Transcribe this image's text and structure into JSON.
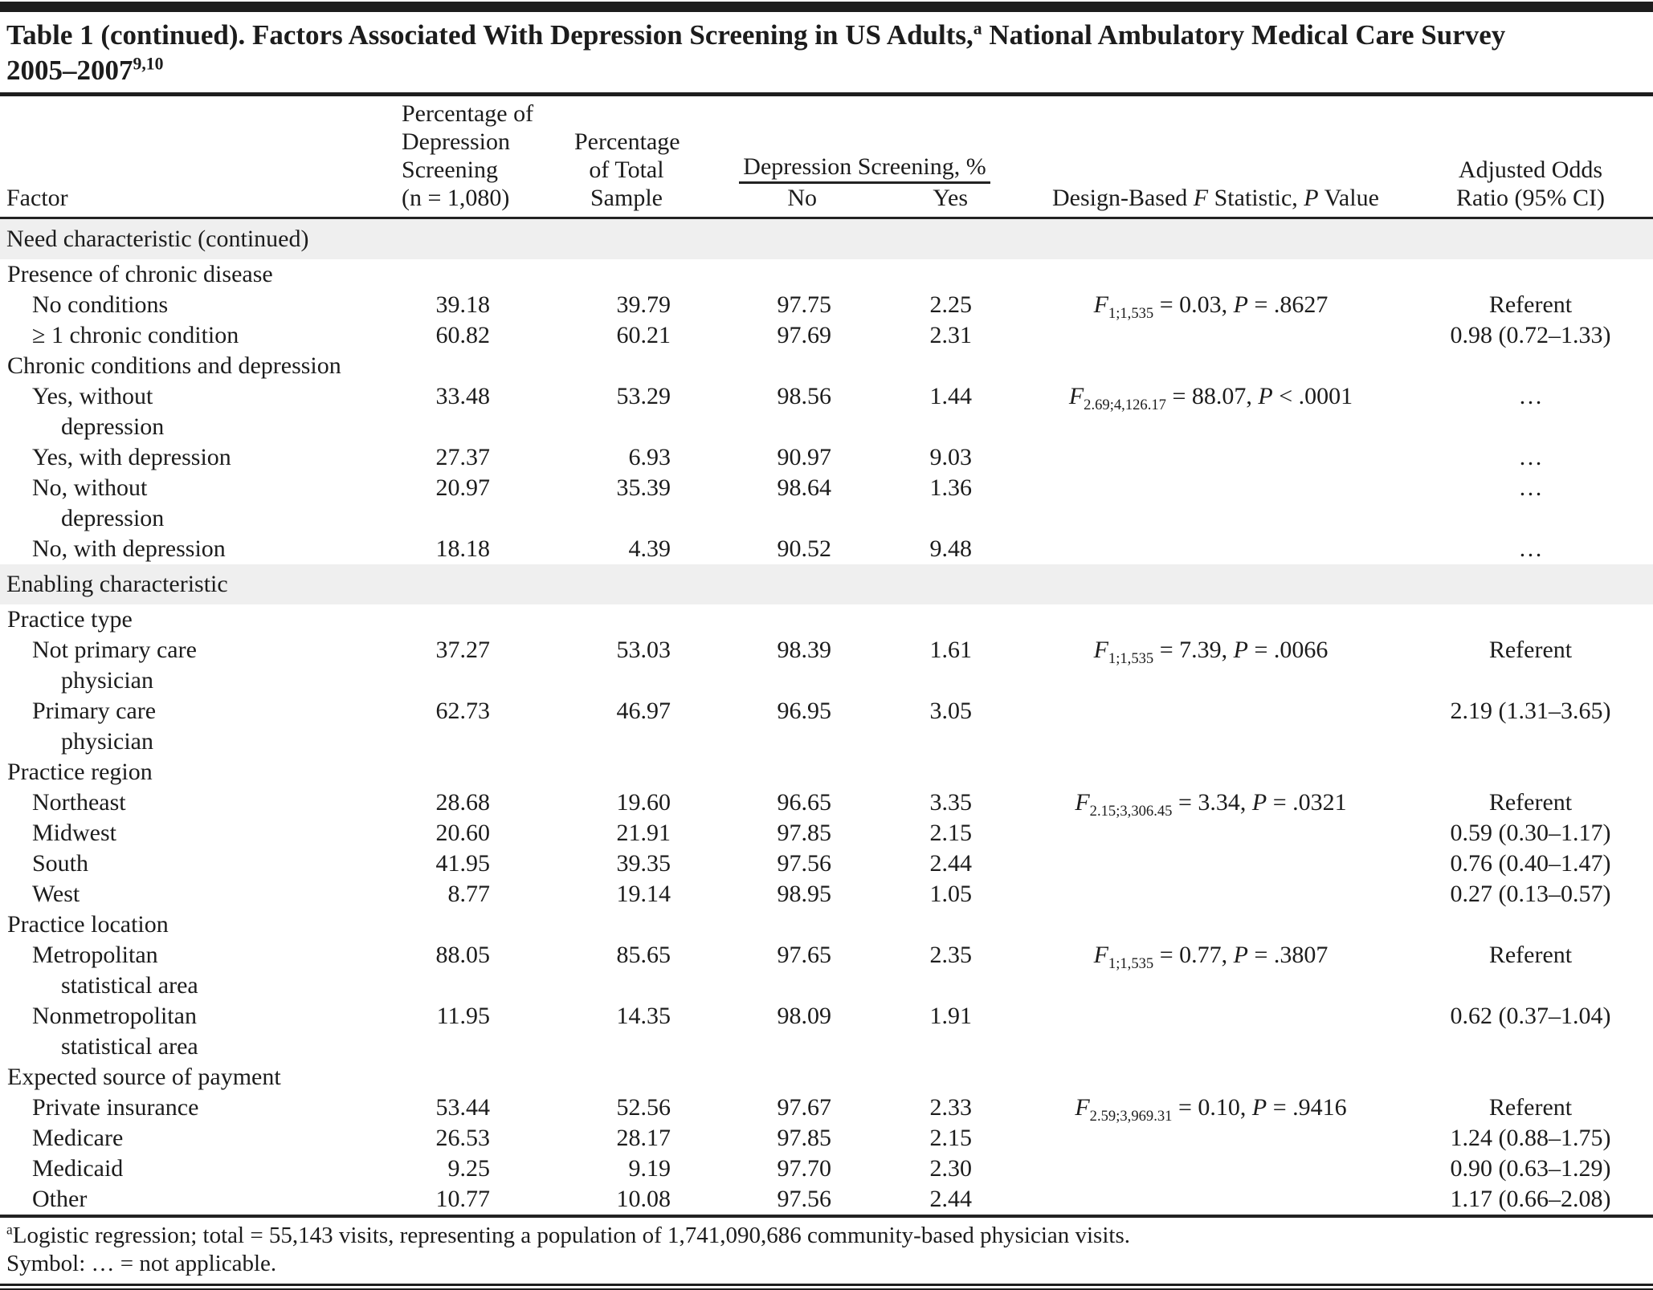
{
  "colors": {
    "band_bg": "#efefef",
    "rule": "#1d1d1d",
    "text": "#1c1c1c"
  },
  "title": {
    "line1_text": "Table 1 (continued). Factors Associated With Depression Screening in US Adults,",
    "line1_sup": "a",
    "line1_rest": " National Ambulatory Medical Care Survey",
    "line2_text": "2005–2007",
    "line2_sup": "9,10"
  },
  "header": {
    "factor": "Factor",
    "col_pct_screening": [
      "Percentage of",
      "Depression",
      "Screening",
      "(n = 1,080)"
    ],
    "col_pct_total": [
      "Percentage",
      "of Total",
      "Sample"
    ],
    "spanner": "Depression Screening, %",
    "no": "No",
    "yes": "Yes",
    "fstat": {
      "p1": "Design-Based ",
      "f": "F",
      "p2": " Statistic, ",
      "p": "P",
      "p3": " Value"
    },
    "aor": [
      "Adjusted Odds",
      "Ratio (95% CI)"
    ]
  },
  "rows": [
    {
      "type": "section",
      "label": "Need characteristic (continued)"
    },
    {
      "type": "group",
      "label": "Presence of chronic disease"
    },
    {
      "type": "item",
      "label": "No conditions",
      "pct_screening": "39.18",
      "pct_total": "39.79",
      "no": "97.75",
      "yes": "2.25",
      "stat": {
        "f": "F",
        "sub": "1;1,535",
        "eq": " = 0.03, ",
        "p": "P",
        "pv": " = .8627"
      },
      "aor": "Referent"
    },
    {
      "type": "item",
      "label": "≥ 1 chronic condition",
      "pct_screening": "60.82",
      "pct_total": "60.21",
      "no": "97.69",
      "yes": "2.31",
      "aor": "0.98 (0.72–1.33)"
    },
    {
      "type": "group",
      "label": "Chronic conditions and depression"
    },
    {
      "type": "item",
      "label": "Yes, without",
      "label2": "depression",
      "pct_screening": "33.48",
      "pct_total": "53.29",
      "no": "98.56",
      "yes": "1.44",
      "stat": {
        "f": "F",
        "sub": "2.69;4,126.17",
        "eq": " = 88.07, ",
        "p": "P",
        "pv": " < .0001"
      },
      "aor": "…"
    },
    {
      "type": "item",
      "label": "Yes, with depression",
      "pct_screening": "27.37",
      "pct_total": "6.93",
      "no": "90.97",
      "yes": "9.03",
      "aor": "…"
    },
    {
      "type": "item",
      "label": "No, without",
      "label2": "depression",
      "pct_screening": "20.97",
      "pct_total": "35.39",
      "no": "98.64",
      "yes": "1.36",
      "aor": "…"
    },
    {
      "type": "item",
      "label": "No, with depression",
      "pct_screening": "18.18",
      "pct_total": "4.39",
      "no": "90.52",
      "yes": "9.48",
      "aor": "…"
    },
    {
      "type": "section",
      "label": "Enabling characteristic"
    },
    {
      "type": "group",
      "label": "Practice type"
    },
    {
      "type": "item",
      "label": "Not primary care",
      "label2": "physician",
      "pct_screening": "37.27",
      "pct_total": "53.03",
      "no": "98.39",
      "yes": "1.61",
      "stat": {
        "f": "F",
        "sub": "1;1,535",
        "eq": " = 7.39, ",
        "p": "P",
        "pv": " = .0066"
      },
      "aor": "Referent"
    },
    {
      "type": "item",
      "label": "Primary care",
      "label2": "physician",
      "pct_screening": "62.73",
      "pct_total": "46.97",
      "no": "96.95",
      "yes": "3.05",
      "aor": "2.19 (1.31–3.65)"
    },
    {
      "type": "group",
      "label": "Practice region"
    },
    {
      "type": "item",
      "label": "Northeast",
      "pct_screening": "28.68",
      "pct_total": "19.60",
      "no": "96.65",
      "yes": "3.35",
      "stat": {
        "f": "F",
        "sub": "2.15;3,306.45",
        "eq": " = 3.34, ",
        "p": "P",
        "pv": " = .0321"
      },
      "aor": "Referent"
    },
    {
      "type": "item",
      "label": "Midwest",
      "pct_screening": "20.60",
      "pct_total": "21.91",
      "no": "97.85",
      "yes": "2.15",
      "aor": "0.59 (0.30–1.17)"
    },
    {
      "type": "item",
      "label": "South",
      "pct_screening": "41.95",
      "pct_total": "39.35",
      "no": "97.56",
      "yes": "2.44",
      "aor": "0.76 (0.40–1.47)"
    },
    {
      "type": "item",
      "label": "West",
      "pct_screening": "8.77",
      "pct_total": "19.14",
      "no": "98.95",
      "yes": "1.05",
      "aor": "0.27 (0.13–0.57)"
    },
    {
      "type": "group",
      "label": "Practice location"
    },
    {
      "type": "item",
      "label": "Metropolitan",
      "label2": "statistical area",
      "pct_screening": "88.05",
      "pct_total": "85.65",
      "no": "97.65",
      "yes": "2.35",
      "stat": {
        "f": "F",
        "sub": "1;1,535",
        "eq": " = 0.77, ",
        "p": "P",
        "pv": " = .3807"
      },
      "aor": "Referent"
    },
    {
      "type": "item",
      "label": "Nonmetropolitan",
      "label2": "statistical area",
      "pct_screening": "11.95",
      "pct_total": "14.35",
      "no": "98.09",
      "yes": "1.91",
      "aor": "0.62 (0.37–1.04)"
    },
    {
      "type": "group",
      "label": "Expected source of payment"
    },
    {
      "type": "item",
      "label": "Private insurance",
      "pct_screening": "53.44",
      "pct_total": "52.56",
      "no": "97.67",
      "yes": "2.33",
      "stat": {
        "f": "F",
        "sub": "2.59;3,969.31",
        "eq": " = 0.10, ",
        "p": "P",
        "pv": " = .9416"
      },
      "aor": "Referent"
    },
    {
      "type": "item",
      "label": "Medicare",
      "pct_screening": "26.53",
      "pct_total": "28.17",
      "no": "97.85",
      "yes": "2.15",
      "aor": "1.24 (0.88–1.75)"
    },
    {
      "type": "item",
      "label": "Medicaid",
      "pct_screening": "9.25",
      "pct_total": "9.19",
      "no": "97.70",
      "yes": "2.30",
      "aor": "0.90 (0.63–1.29)"
    },
    {
      "type": "item",
      "label": "Other",
      "pct_screening": "10.77",
      "pct_total": "10.08",
      "no": "97.56",
      "yes": "2.44",
      "aor": "1.17 (0.66–2.08)"
    }
  ],
  "footnotes": {
    "sup": "a",
    "line1": "Logistic regression; total = 55,143 visits, representing a population of 1,741,090,686 community-based physician visits.",
    "line2": "Symbol: … = not applicable."
  }
}
